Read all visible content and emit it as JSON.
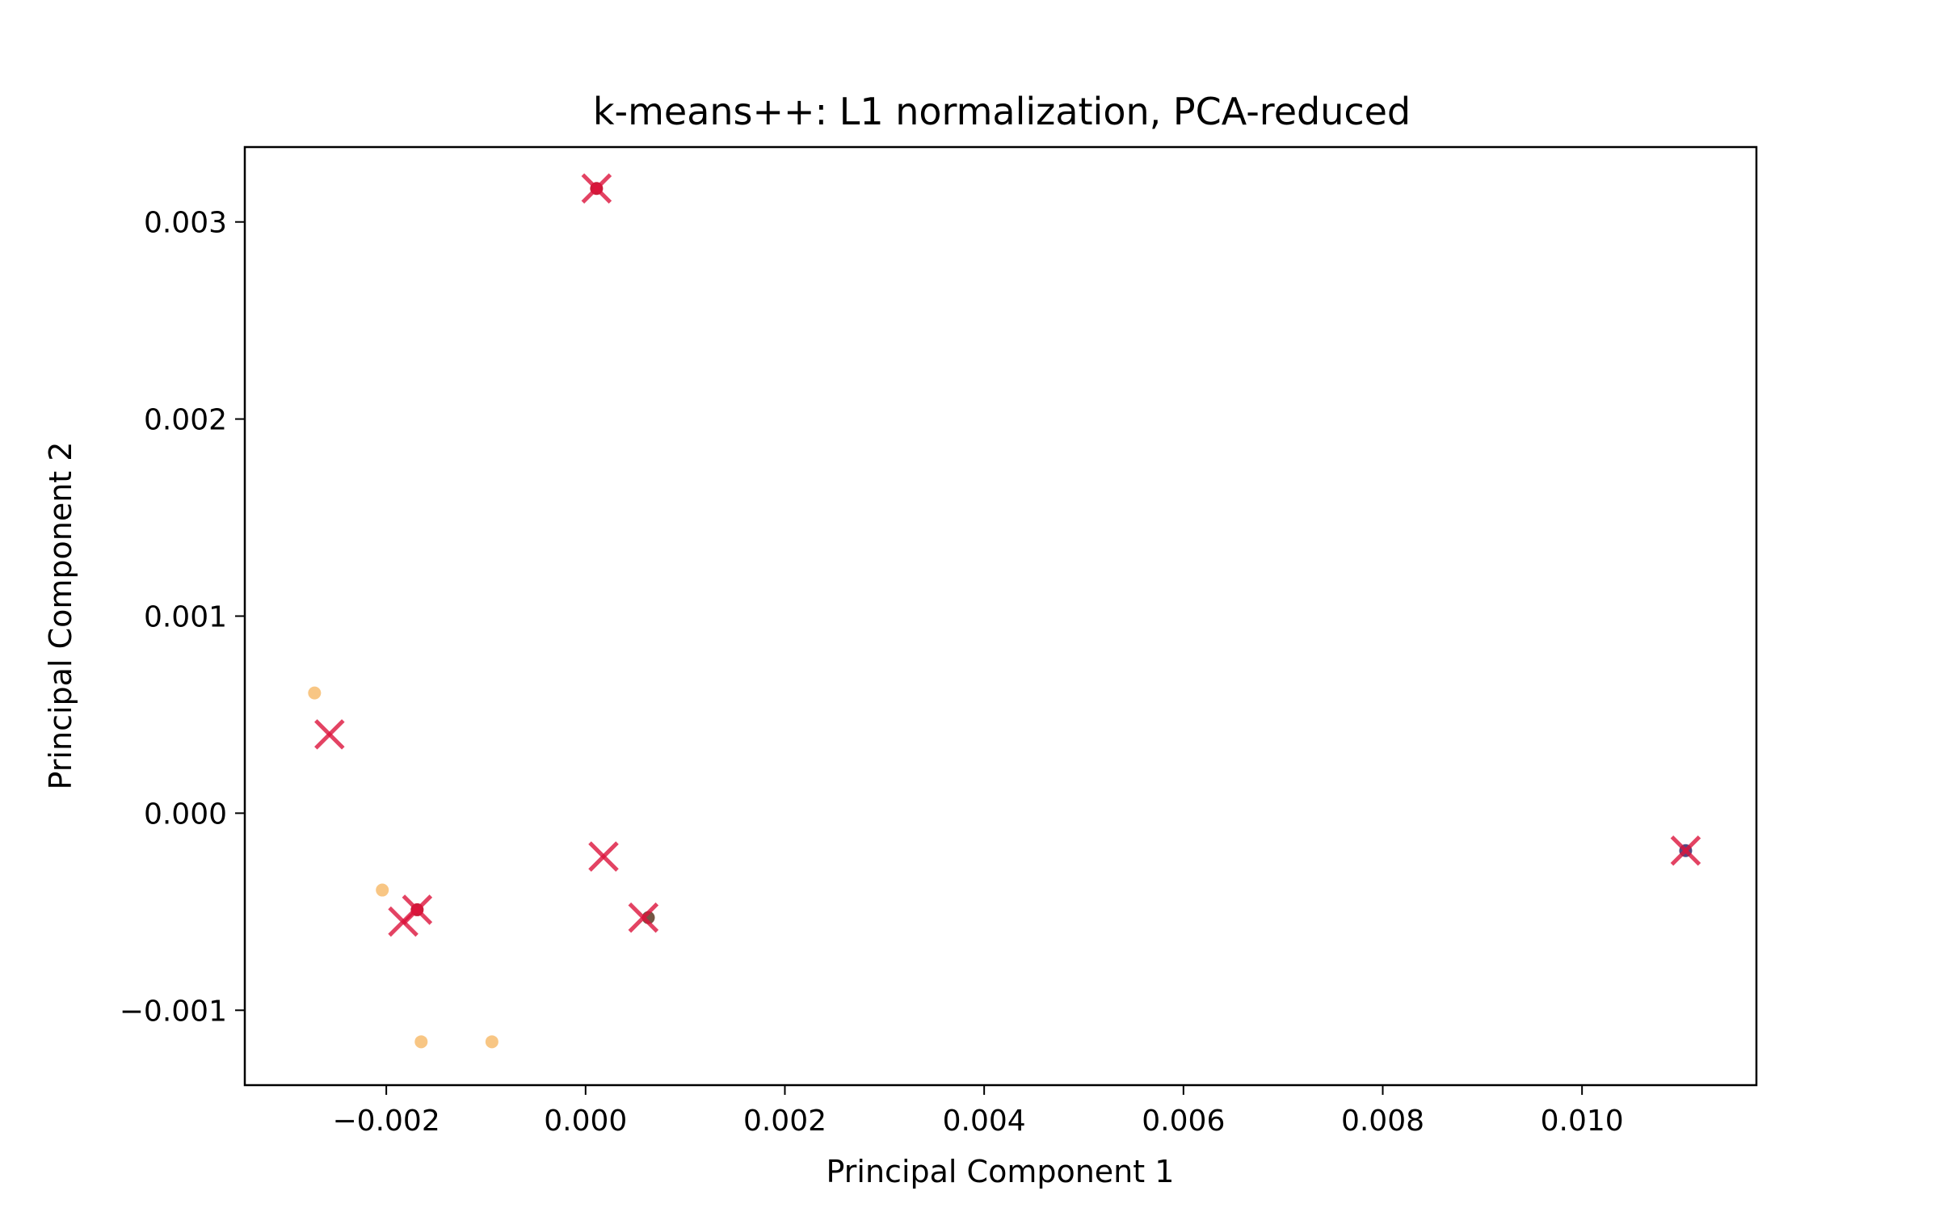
{
  "chart_data": {
    "type": "scatter",
    "title": "k-means++: L1 normalization, PCA-reduced",
    "xlabel": "Principal Component 1",
    "ylabel": "Principal Component 2",
    "xlim": [
      -0.00342,
      0.01175
    ],
    "ylim": [
      -0.00138,
      0.00338
    ],
    "xticks": [
      -0.002,
      0.0,
      0.002,
      0.004,
      0.006,
      0.008,
      0.01
    ],
    "xtick_labels": [
      "−0.002",
      "0.000",
      "0.002",
      "0.004",
      "0.006",
      "0.008",
      "0.010"
    ],
    "yticks": [
      -0.001,
      0.0,
      0.001,
      0.002,
      0.003
    ],
    "ytick_labels": [
      "−0.001",
      "0.000",
      "0.001",
      "0.002",
      "0.003"
    ],
    "grid": false,
    "series": [
      {
        "marker": "dot",
        "color": "#f5a742",
        "x": [
          -0.00272,
          -0.00204,
          -0.00165,
          -0.00094
        ],
        "y": [
          0.00061,
          -0.00039,
          -0.00116,
          -0.00116
        ]
      },
      {
        "marker": "dot",
        "colors": [
          "#c8102e",
          "#c8102e",
          "#6b4d3a",
          "#4b3f7a"
        ],
        "x": [
          0.00011,
          -0.00169,
          0.00063,
          0.01104
        ],
        "y": [
          0.00317,
          -0.00049,
          -0.00053,
          -0.00019
        ]
      },
      {
        "marker": "x",
        "color": "#dc143c",
        "x": [
          0.00011,
          -0.00257,
          -0.00169,
          -0.00183,
          0.00018,
          0.00058,
          0.01104
        ],
        "y": [
          0.00317,
          0.0004,
          -0.00049,
          -0.00055,
          -0.00022,
          -0.00053,
          -0.00019
        ]
      }
    ]
  }
}
